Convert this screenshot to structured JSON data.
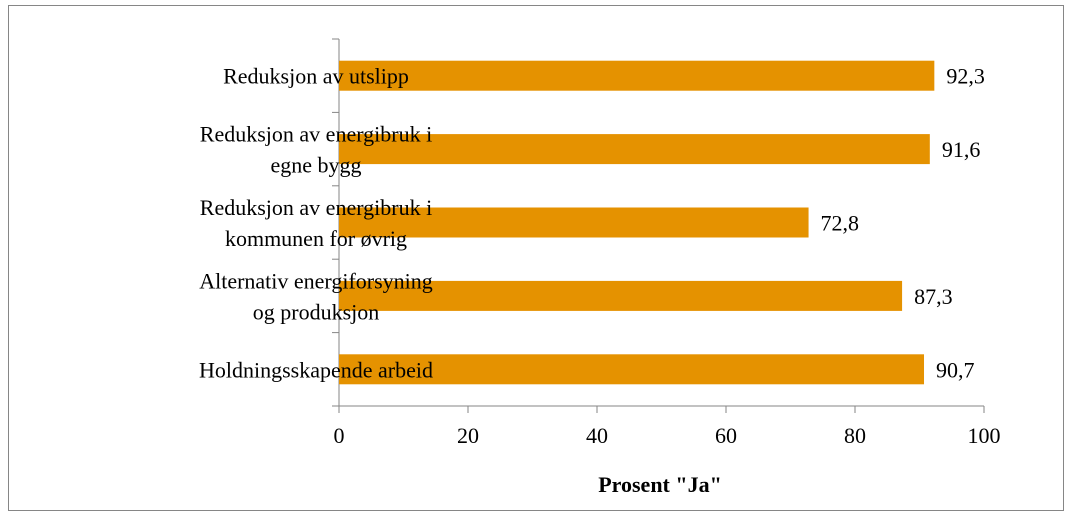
{
  "chart_data": {
    "type": "bar",
    "orientation": "horizontal",
    "categories": [
      [
        "Reduksjon av utslipp"
      ],
      [
        "Reduksjon av energibruk i",
        "egne bygg"
      ],
      [
        "Reduksjon av energibruk i",
        "kommunen for øvrig"
      ],
      [
        "Alternativ energiforsyning",
        "og produksjon"
      ],
      [
        "Holdningsskapende arbeid"
      ]
    ],
    "values": [
      92.3,
      91.6,
      72.8,
      87.3,
      90.7
    ],
    "value_labels": [
      "92,3",
      "91,6",
      "72,8",
      "87,3",
      "90,7"
    ],
    "xlim": [
      0,
      100
    ],
    "xticks": [
      0,
      20,
      40,
      60,
      80,
      100
    ],
    "xlabel": "Prosent \"Ja\"",
    "ylabel": "",
    "title": "",
    "grid": false,
    "legend": "none",
    "bar_color": "#E59200",
    "axis_color": "#868686"
  }
}
